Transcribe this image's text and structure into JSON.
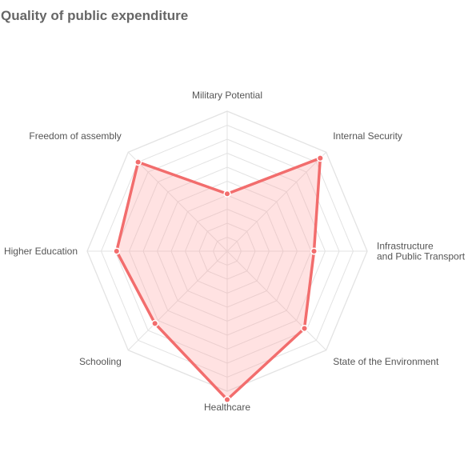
{
  "chart_data": {
    "type": "radar",
    "title": "Quality of public expenditure",
    "axes": [
      [
        "Military Potential"
      ],
      [
        "Internal Security"
      ],
      [
        "Infrastructure",
        "and Public Transport"
      ],
      [
        "State of the Environment"
      ],
      [
        "Healthcare"
      ],
      [
        "Schooling"
      ],
      [
        "Higher Education"
      ],
      [
        "Freedom of assembly"
      ]
    ],
    "series": [
      {
        "name": "",
        "values": [
          4.1,
          9.4,
          6.2,
          7.8,
          10.6,
          7.3,
          7.9,
          9.0
        ]
      }
    ],
    "rmax": 10,
    "rings": 10,
    "grid": true,
    "legend": "none",
    "colors": {
      "line": "#f26d6d",
      "fill": "rgba(255,160,160,0.3)",
      "grid": "#e3e3e3",
      "label": "#555555",
      "title": "#666666"
    }
  }
}
